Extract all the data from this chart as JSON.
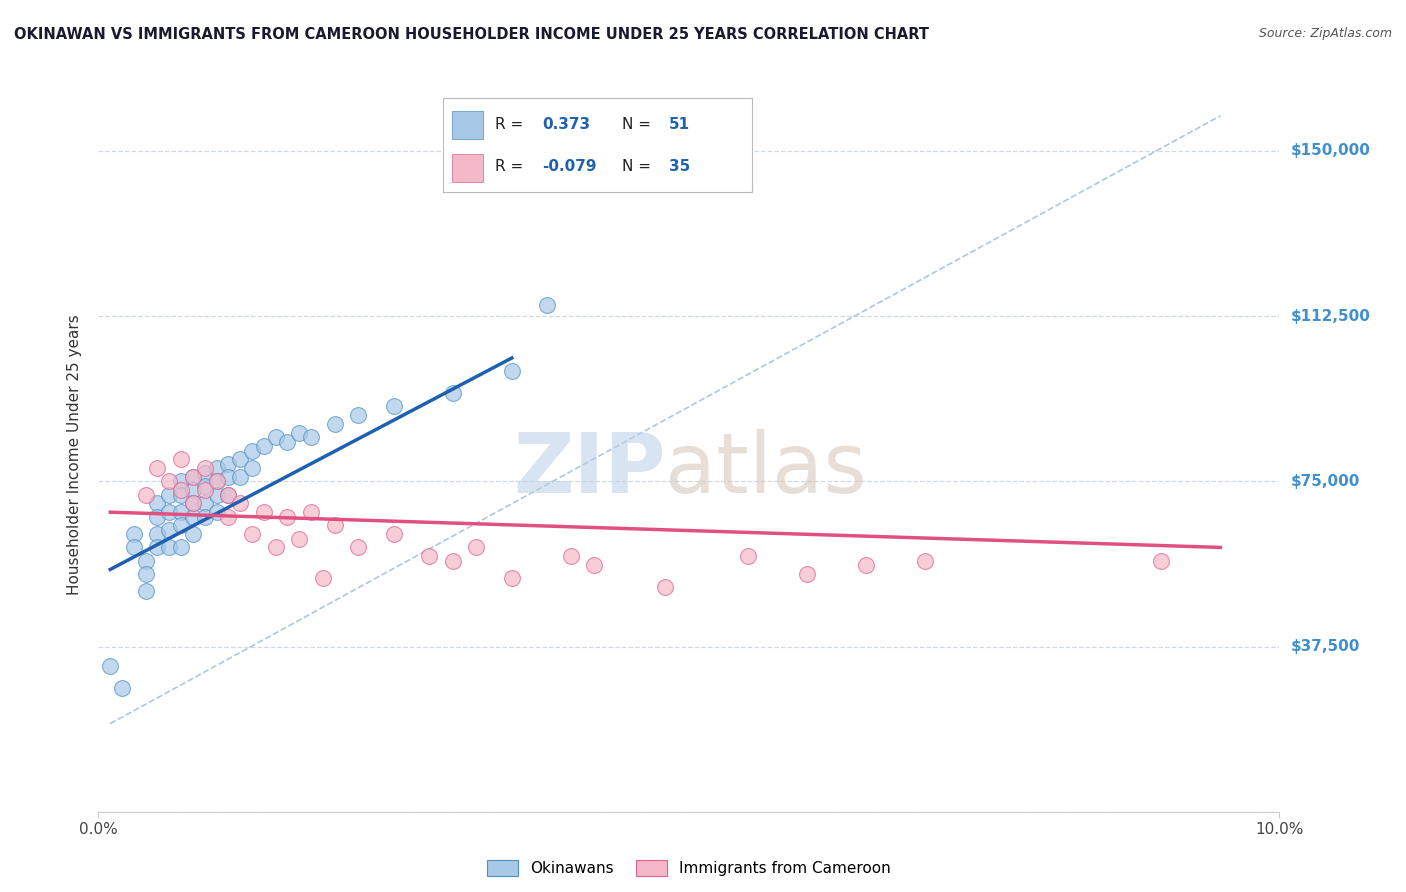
{
  "title": "OKINAWAN VS IMMIGRANTS FROM CAMEROON HOUSEHOLDER INCOME UNDER 25 YEARS CORRELATION CHART",
  "source": "Source: ZipAtlas.com",
  "ylabel": "Householder Income Under 25 years",
  "xlim": [
    0.0,
    0.1
  ],
  "ylim": [
    0,
    162000
  ],
  "blue_color": "#a8c8e8",
  "pink_color": "#f4b8c8",
  "blue_edge_color": "#5090c0",
  "pink_edge_color": "#e06090",
  "blue_line_color": "#2060b0",
  "pink_line_color": "#e05080",
  "diag_line_color": "#8ab0d0",
  "background_color": "#ffffff",
  "grid_color": "#d0d8e0",
  "ytick_color": "#4090d0",
  "blue_scatter_x": [
    0.001,
    0.002,
    0.003,
    0.003,
    0.004,
    0.004,
    0.004,
    0.005,
    0.005,
    0.005,
    0.005,
    0.006,
    0.006,
    0.006,
    0.006,
    0.007,
    0.007,
    0.007,
    0.007,
    0.007,
    0.008,
    0.008,
    0.008,
    0.008,
    0.008,
    0.009,
    0.009,
    0.009,
    0.009,
    0.01,
    0.01,
    0.01,
    0.01,
    0.011,
    0.011,
    0.011,
    0.012,
    0.012,
    0.013,
    0.013,
    0.014,
    0.015,
    0.016,
    0.017,
    0.018,
    0.02,
    0.022,
    0.025,
    0.03,
    0.035,
    0.038
  ],
  "blue_scatter_y": [
    33000,
    28000,
    63000,
    60000,
    57000,
    54000,
    50000,
    70000,
    67000,
    63000,
    60000,
    72000,
    68000,
    64000,
    60000,
    75000,
    72000,
    68000,
    65000,
    60000,
    76000,
    73000,
    70000,
    67000,
    63000,
    77000,
    74000,
    70000,
    67000,
    78000,
    75000,
    72000,
    68000,
    79000,
    76000,
    72000,
    80000,
    76000,
    82000,
    78000,
    83000,
    85000,
    84000,
    86000,
    85000,
    88000,
    90000,
    92000,
    95000,
    100000,
    115000
  ],
  "pink_scatter_x": [
    0.004,
    0.005,
    0.006,
    0.007,
    0.007,
    0.008,
    0.008,
    0.009,
    0.009,
    0.01,
    0.011,
    0.011,
    0.012,
    0.013,
    0.014,
    0.015,
    0.016,
    0.017,
    0.018,
    0.019,
    0.02,
    0.022,
    0.025,
    0.028,
    0.03,
    0.032,
    0.035,
    0.04,
    0.042,
    0.048,
    0.055,
    0.06,
    0.065,
    0.07,
    0.09
  ],
  "pink_scatter_y": [
    72000,
    78000,
    75000,
    80000,
    73000,
    76000,
    70000,
    78000,
    73000,
    75000,
    72000,
    67000,
    70000,
    63000,
    68000,
    60000,
    67000,
    62000,
    68000,
    53000,
    65000,
    60000,
    63000,
    58000,
    57000,
    60000,
    53000,
    58000,
    56000,
    51000,
    58000,
    54000,
    56000,
    57000,
    57000
  ],
  "blue_trendline_x": [
    0.001,
    0.035
  ],
  "blue_trendline_y": [
    55000,
    103000
  ],
  "pink_trendline_x": [
    0.001,
    0.095
  ],
  "pink_trendline_y": [
    68000,
    60000
  ],
  "diag_line_x": [
    0.001,
    0.095
  ],
  "diag_line_y": [
    20000,
    158000
  ]
}
